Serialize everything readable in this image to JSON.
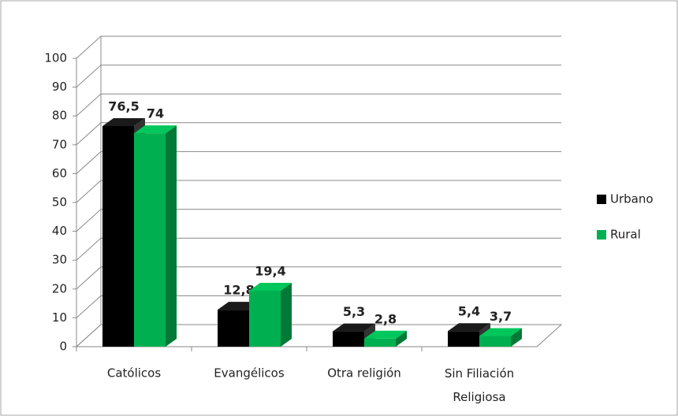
{
  "chart_data": {
    "type": "bar3d",
    "categories": [
      "Católicos",
      "Evangélicos",
      "Otra religión",
      "Sin Filiación Religiosa"
    ],
    "series": [
      {
        "name": "Urbano",
        "color": "#000000",
        "values": [
          76.5,
          12.8,
          5.3,
          5.4
        ],
        "value_labels": [
          "76,5",
          "12,8",
          "5,3",
          "5,4"
        ]
      },
      {
        "name": "Rural",
        "color": "#00b050",
        "values": [
          74,
          19.4,
          2.8,
          3.7
        ],
        "value_labels": [
          "74",
          "19,4",
          "2,8",
          "3,7"
        ]
      }
    ],
    "ylim": [
      0,
      100
    ],
    "yticks": [
      0,
      10,
      20,
      30,
      40,
      50,
      60,
      70,
      80,
      90,
      100
    ],
    "grid": true,
    "legend": "right"
  }
}
